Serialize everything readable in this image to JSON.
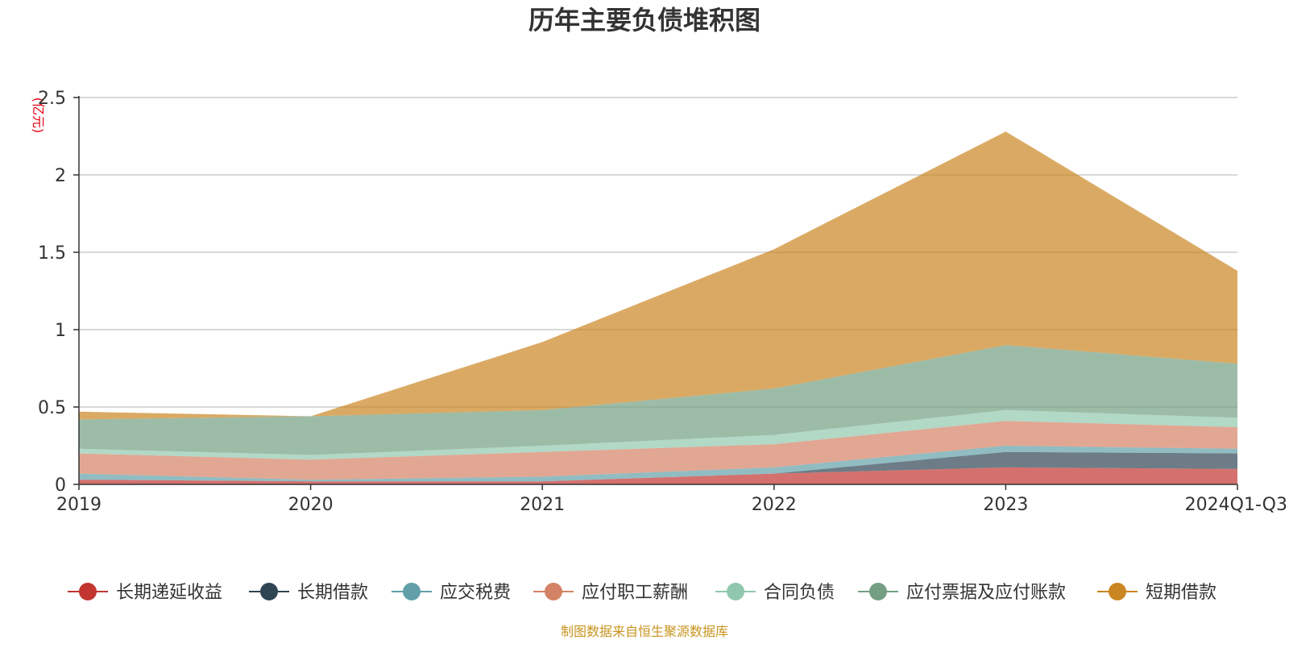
{
  "chart_data": {
    "type": "area",
    "stacked": true,
    "title": "历年主要负债堆积图",
    "unit_label": "(亿元)",
    "source": "制图数据来自恒生聚源数据库",
    "categories": [
      "2019",
      "2020",
      "2021",
      "2022",
      "2023",
      "2024Q1-Q3"
    ],
    "y_ticks": [
      "0",
      "0.5",
      "1",
      "1.5",
      "2",
      "2.5"
    ],
    "ylim": [
      0,
      2.5
    ],
    "grid": true,
    "legend_position": "bottom",
    "series": [
      {
        "name": "长期递延收益",
        "color": "#c23531",
        "values": [
          0.03,
          0.02,
          0.02,
          0.07,
          0.11,
          0.1
        ]
      },
      {
        "name": "长期借款",
        "color": "#2f4554",
        "values": [
          0.0,
          0.0,
          0.0,
          0.0,
          0.1,
          0.1
        ]
      },
      {
        "name": "应交税费",
        "color": "#61a0a8",
        "values": [
          0.04,
          0.01,
          0.03,
          0.04,
          0.04,
          0.03
        ]
      },
      {
        "name": "应付职工薪酬",
        "color": "#d48265",
        "values": [
          0.13,
          0.13,
          0.16,
          0.15,
          0.16,
          0.14
        ]
      },
      {
        "name": "合同负债",
        "color": "#91c7ae",
        "values": [
          0.03,
          0.03,
          0.04,
          0.06,
          0.07,
          0.06
        ]
      },
      {
        "name": "应付票据及应付账款",
        "color": "#749f83",
        "values": [
          0.19,
          0.25,
          0.23,
          0.3,
          0.42,
          0.35
        ]
      },
      {
        "name": "短期借款",
        "color": "#ca8622",
        "values": [
          0.05,
          0.0,
          0.44,
          0.9,
          1.38,
          0.6
        ]
      }
    ]
  }
}
